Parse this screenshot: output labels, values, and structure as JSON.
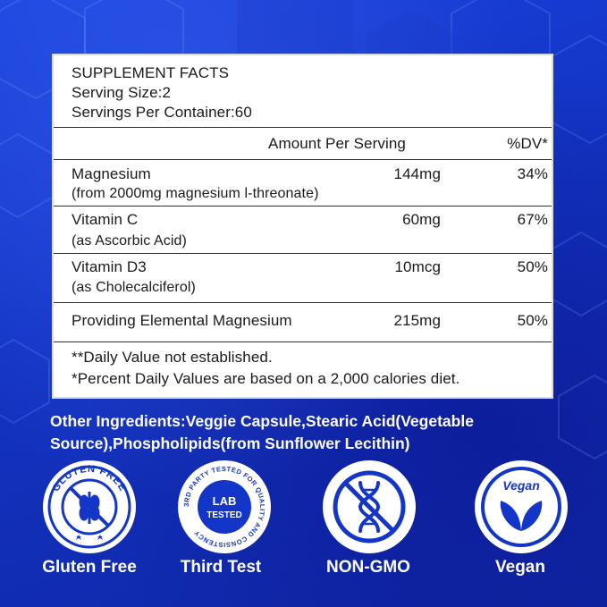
{
  "facts": {
    "title": "SUPPLEMENT FACTS",
    "serving_size": "Serving Size:2",
    "servings_per_container": "Servings Per Container:60",
    "col_amount": "Amount Per Serving",
    "col_dv": "%DV*",
    "rows": [
      {
        "name": "Magnesium",
        "detail": "(from 2000mg magnesium l-threonate)",
        "amount": "144mg",
        "dv": "34%"
      },
      {
        "name": "Vitamin C",
        "detail": "(as Ascorbic Acid)",
        "amount": "60mg",
        "dv": "67%"
      },
      {
        "name": "Vitamin D3",
        "detail": "(as Cholecalciferol)",
        "amount": "10mcg",
        "dv": "50%"
      },
      {
        "name": "Providing Elemental Magnesium",
        "detail": "",
        "amount": "215mg",
        "dv": "50%"
      }
    ],
    "footnote_1": "**Daily Value not established.",
    "footnote_2": "*Percent Daily Values are based on a 2,000 calories diet."
  },
  "other_ingredients": {
    "line1": "Other Ingredients:Veggie Capsule,Stearic Acid(Vegetable",
    "line2": "Source),Phospholipids(from Sunflower Lecithin)"
  },
  "badges": [
    {
      "label": "Gluten Free",
      "ring_text": "GLUTEN FREE",
      "icon": "wheat-crossed-icon"
    },
    {
      "label": "Third Test",
      "ring_text": "3RD PARTY TESTED FOR QUALITY AND CONSISTENCY",
      "inner_line1": "LAB",
      "inner_line2": "TESTED",
      "icon": "lab-tested-icon"
    },
    {
      "label": "NON-GMO",
      "icon": "dna-icon"
    },
    {
      "label": "Vegan",
      "inner_text": "Vegan",
      "icon": "leaf-icon"
    }
  ],
  "colors": {
    "background": "#1436c8",
    "panel": "#ffffff",
    "text": "#1a1a1a"
  }
}
